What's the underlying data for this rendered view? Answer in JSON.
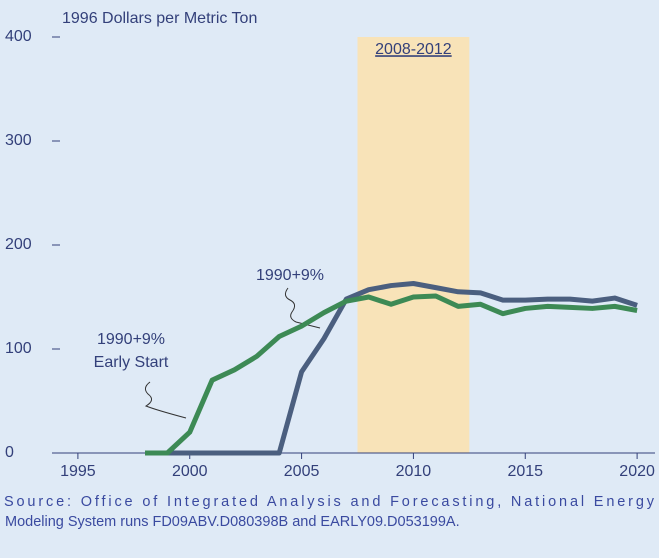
{
  "chart_data": {
    "type": "line",
    "ylabel": "1996 Dollars per Metric Ton",
    "x": [
      1998,
      1999,
      2000,
      2001,
      2002,
      2003,
      2004,
      2005,
      2006,
      2007,
      2008,
      2009,
      2010,
      2011,
      2012,
      2013,
      2014,
      2015,
      2016,
      2017,
      2018,
      2019,
      2020
    ],
    "series": [
      {
        "name": "1990+9%",
        "color": "#4b5f7f",
        "values": [
          0,
          0,
          0,
          0,
          0,
          0,
          0,
          78,
          110,
          148,
          157,
          161,
          163,
          159,
          155,
          154,
          147,
          147,
          148,
          148,
          146,
          149,
          142
        ]
      },
      {
        "name": "1990+9% Early Start",
        "color": "#3d8a55",
        "values": [
          0,
          0,
          20,
          70,
          80,
          93,
          112,
          122,
          135,
          146,
          150,
          143,
          150,
          151,
          141,
          143,
          134,
          139,
          141,
          140,
          139,
          141,
          137
        ]
      }
    ],
    "xlim": [
      1994.2,
      2020.8
    ],
    "xticks": [
      1995,
      2000,
      2005,
      2010,
      2015,
      2020
    ],
    "ylim": [
      0,
      400
    ],
    "yticks": [
      0,
      100,
      200,
      300,
      400
    ],
    "highlight": {
      "label": "2008-2012",
      "from": 2007.5,
      "to": 2012.5,
      "color": "#f8e3b8"
    },
    "annotations": [
      "1990+9%",
      "1990+9%",
      "Early Start"
    ],
    "source": [
      "Source: Office of Integrated Analysis and Forecasting, National Energy",
      "Modeling System runs FD09ABV.D080398B and EARLY09.D053199A."
    ]
  }
}
